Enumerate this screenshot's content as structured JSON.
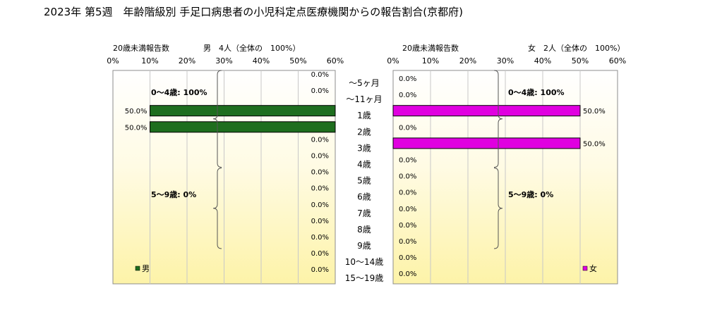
{
  "chart_data": {
    "type": "bar",
    "orientation": "horizontal-butterfly",
    "title": "2023年 第5週　年齢階級別 手足口病患者の小児科定点医療機関からの報告割合(京都府)",
    "categories": [
      "～5ヶ月",
      "～11ヶ月",
      "1歳",
      "2歳",
      "3歳",
      "4歳",
      "5歳",
      "6歳",
      "7歳",
      "8歳",
      "9歳",
      "10～14歳",
      "15～19歳"
    ],
    "value_unit": "%",
    "xlim": [
      0,
      60
    ],
    "ticks": [
      0,
      10,
      20,
      30,
      40,
      50,
      60
    ],
    "tick_labels_left": [
      "60%",
      "50%",
      "40%",
      "30%",
      "20%",
      "10%",
      "0%"
    ],
    "tick_labels_right": [
      "0%",
      "10%",
      "20%",
      "30%",
      "40%",
      "50%",
      "60%"
    ],
    "grid": true,
    "series": [
      {
        "name": "男",
        "side": "left",
        "color": "#1e6e1e",
        "header_label": "20歳未満報告数",
        "header_value": "男　4人（全体の　100%）",
        "legend": "男",
        "values": [
          0.0,
          0.0,
          50.0,
          50.0,
          0.0,
          0.0,
          0.0,
          0.0,
          0.0,
          0.0,
          0.0,
          0.0,
          0.0
        ],
        "value_labels": [
          "0.0%",
          "0.0%",
          "50.0%",
          "50.0%",
          "0.0%",
          "0.0%",
          "0.0%",
          "0.0%",
          "0.0%",
          "0.0%",
          "0.0%",
          "0.0%",
          "0.0%"
        ],
        "groups": [
          {
            "label": "0～4歳: 100%",
            "from": 0,
            "to": 5
          },
          {
            "label": "5～9歳: 0%",
            "from": 6,
            "to": 10
          }
        ]
      },
      {
        "name": "女",
        "side": "right",
        "color": "#e000e0",
        "header_label": "20歳未満報告数",
        "header_value": "女　2人（全体の　100%）",
        "legend": "女",
        "values": [
          0.0,
          0.0,
          50.0,
          0.0,
          50.0,
          0.0,
          0.0,
          0.0,
          0.0,
          0.0,
          0.0,
          0.0,
          0.0
        ],
        "value_labels": [
          "0.0%",
          "0.0%",
          "50.0%",
          "0.0%",
          "50.0%",
          "0.0%",
          "0.0%",
          "0.0%",
          "0.0%",
          "0.0%",
          "0.0%",
          "0.0%",
          "0.0%"
        ],
        "groups": [
          {
            "label": "0～4歳: 100%",
            "from": 0,
            "to": 5
          },
          {
            "label": "5～9歳: 0%",
            "from": 6,
            "to": 10
          }
        ]
      }
    ]
  }
}
